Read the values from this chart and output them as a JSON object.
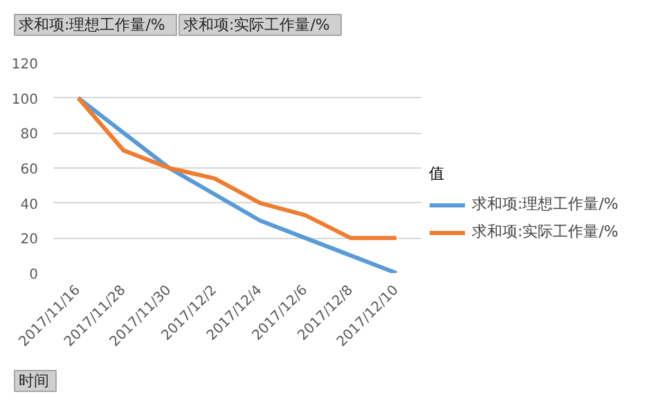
{
  "chart_data": {
    "type": "line",
    "categories": [
      "2017/11/16",
      "2017/11/28",
      "2017/11/30",
      "2017/12/2",
      "2017/12/4",
      "2017/12/6",
      "2017/12/8",
      "2017/12/10"
    ],
    "series": [
      {
        "name": "求和项:理想工作量/%",
        "color": "#5b9bd5",
        "values": [
          100,
          80,
          60,
          45,
          30,
          20,
          10,
          0
        ]
      },
      {
        "name": "求和项:实际工作量/%",
        "color": "#ed7d31",
        "values": [
          100,
          70,
          60,
          54,
          40,
          33,
          20,
          20
        ]
      }
    ],
    "ylim": [
      0,
      120
    ],
    "yticks": [
      0,
      20,
      40,
      60,
      80,
      100,
      120
    ],
    "grid": "y",
    "legend": "right",
    "legend_title": "值",
    "xlabel": "时间",
    "annotations": [
      "求和项:理想工作量/%",
      "求和项:实际工作量/%"
    ]
  }
}
